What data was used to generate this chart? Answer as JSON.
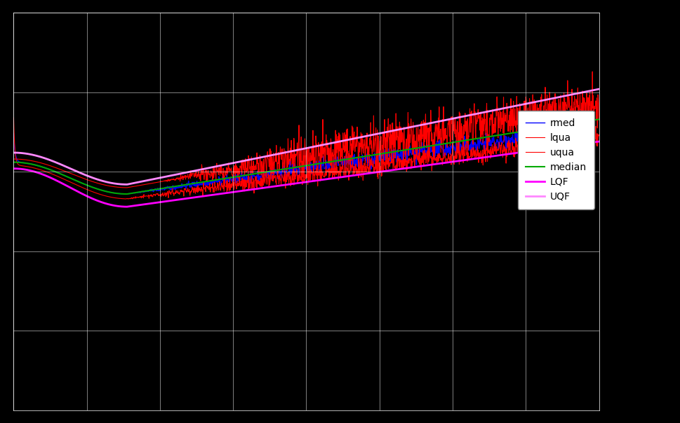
{
  "background_color": "#000000",
  "plot_bg_color": "#000000",
  "grid_color": "#ffffff",
  "text_color": "#ffffff",
  "legend_labels": [
    "rmed",
    "lqua",
    "uqua",
    "median",
    "LQF",
    "UQF"
  ],
  "legend_colors": [
    "#0000ff",
    "#ff0000",
    "#ff0000",
    "#00aa00",
    "#ff00ff",
    "#ff88ff"
  ],
  "line_widths": [
    1.0,
    0.8,
    0.8,
    1.5,
    2.0,
    2.0
  ],
  "noise_seed": 42,
  "ylim": [
    -1.5,
    1.0
  ],
  "xlim": [
    0,
    800
  ]
}
